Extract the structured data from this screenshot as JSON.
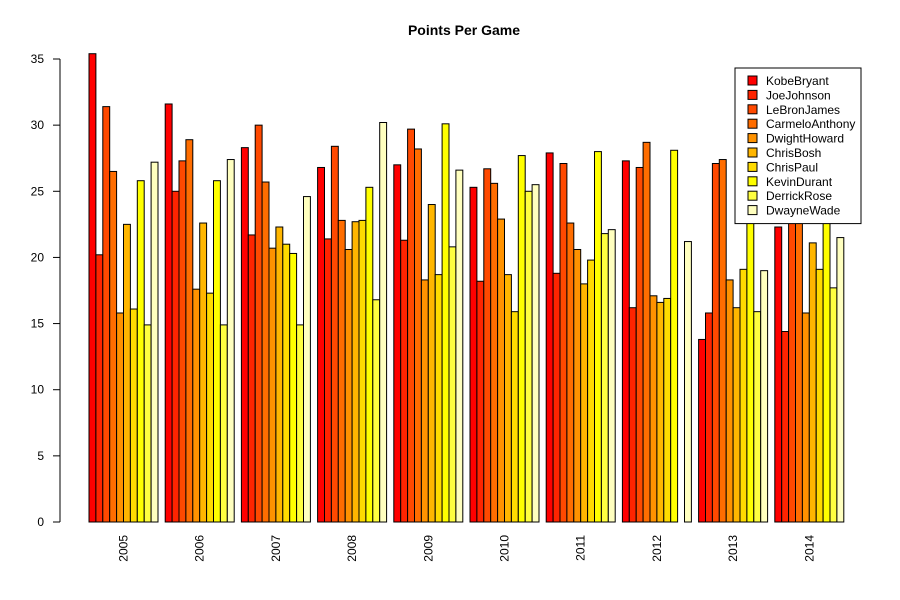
{
  "chart_data": {
    "type": "bar",
    "title": "Points Per Game",
    "xlabel": "",
    "ylabel": "",
    "ylim": [
      0,
      35
    ],
    "yticks": [
      0,
      5,
      10,
      15,
      20,
      25,
      30,
      35
    ],
    "grid": false,
    "legend_position": "top-right",
    "categories": [
      "2005",
      "2006",
      "2007",
      "2008",
      "2009",
      "2010",
      "2011",
      "2012",
      "2013",
      "2014"
    ],
    "series": [
      {
        "name": "KobeBryant",
        "color": "#ff0000",
        "values": [
          35.4,
          31.6,
          28.3,
          26.8,
          27.0,
          25.3,
          27.9,
          27.3,
          13.8,
          22.3
        ]
      },
      {
        "name": "JoeJohnson",
        "color": "#ff2400",
        "values": [
          20.2,
          25.0,
          21.7,
          21.4,
          21.3,
          18.2,
          18.8,
          16.2,
          15.8,
          14.4
        ]
      },
      {
        "name": "LeBronJames",
        "color": "#ff4900",
        "values": [
          31.4,
          27.3,
          30.0,
          28.4,
          29.7,
          26.7,
          27.1,
          26.8,
          27.1,
          27.1
        ]
      },
      {
        "name": "CarmeloAnthony",
        "color": "#ff6d00",
        "values": [
          26.5,
          28.9,
          25.7,
          22.8,
          28.2,
          25.6,
          22.6,
          28.7,
          27.4,
          24.2
        ]
      },
      {
        "name": "DwightHoward",
        "color": "#ff9200",
        "values": [
          15.8,
          17.6,
          20.7,
          20.6,
          18.3,
          22.9,
          20.6,
          17.1,
          18.3,
          15.8
        ]
      },
      {
        "name": "ChrisBosh",
        "color": "#ffb600",
        "values": [
          22.5,
          22.6,
          22.3,
          22.7,
          24.0,
          18.7,
          18.0,
          16.6,
          16.2,
          21.1
        ]
      },
      {
        "name": "ChrisPaul",
        "color": "#ffdb00",
        "values": [
          16.1,
          17.3,
          21.0,
          22.8,
          18.7,
          15.9,
          19.8,
          16.9,
          19.1,
          19.1
        ]
      },
      {
        "name": "KevinDurant",
        "color": "#ffff00",
        "values": [
          25.8,
          25.8,
          20.3,
          25.3,
          30.1,
          27.7,
          28.0,
          28.1,
          32.0,
          25.4
        ]
      },
      {
        "name": "DerrickRose",
        "color": "#ffff40",
        "values": [
          14.9,
          14.9,
          14.9,
          16.8,
          20.8,
          25.0,
          21.8,
          0,
          15.9,
          17.7
        ]
      },
      {
        "name": "DwayneWade",
        "color": "#ffffbf",
        "values": [
          27.2,
          27.4,
          24.6,
          30.2,
          26.6,
          25.5,
          22.1,
          21.2,
          19.0,
          21.5
        ]
      }
    ]
  }
}
